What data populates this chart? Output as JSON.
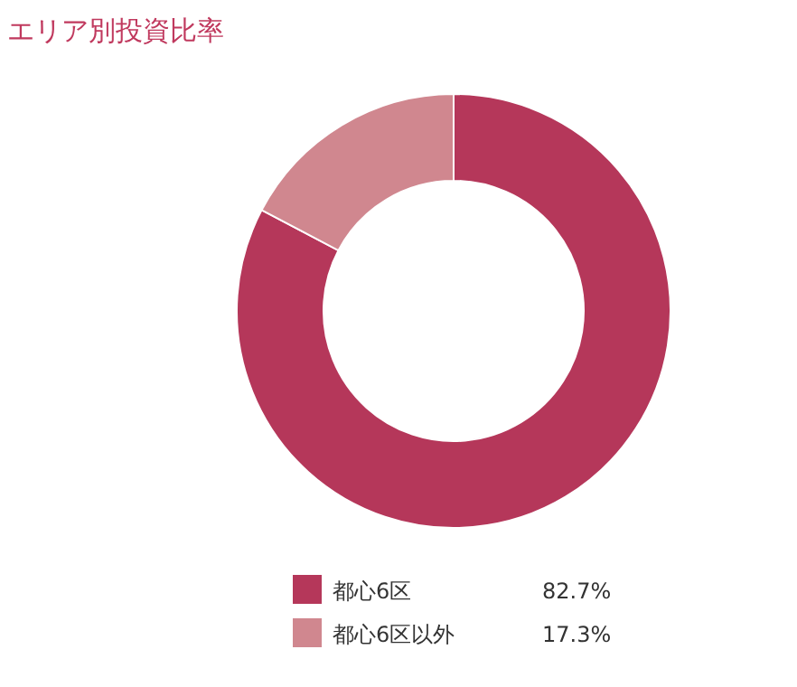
{
  "chart_data": {
    "type": "donut",
    "title": "エリア別投資比率",
    "categories": [
      "都心6区",
      "都心6区以外"
    ],
    "values": [
      82.7,
      17.3
    ],
    "colors": [
      "#b5375a",
      "#d0878f"
    ],
    "value_labels": [
      "82.7%",
      "17.3%"
    ],
    "legend": "bottom"
  }
}
